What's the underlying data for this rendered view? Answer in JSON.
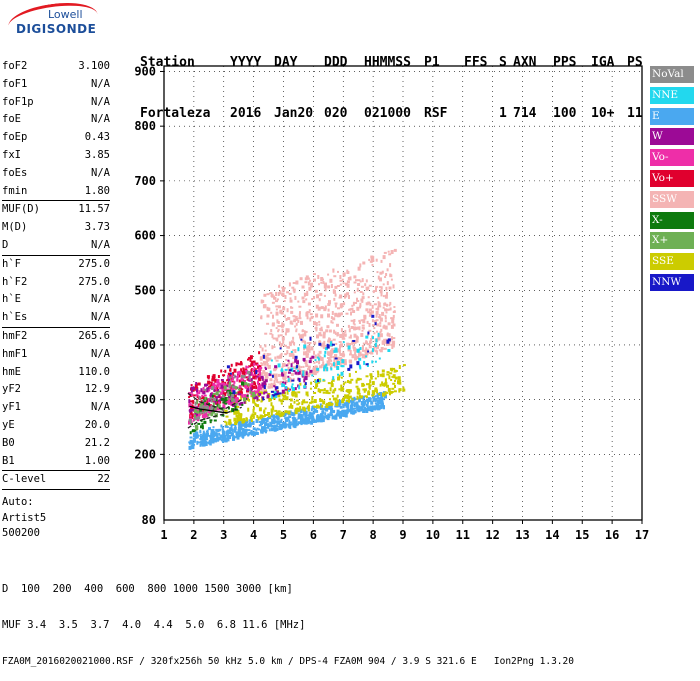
{
  "logo": {
    "line1": "Lowell",
    "line2": "DIGISONDE"
  },
  "header": {
    "labels": [
      "Station",
      "YYYY",
      "DAY",
      "DDD",
      "HHMMSS",
      "P1",
      "FFS",
      "S",
      "AXN",
      "PPS",
      "IGA",
      "PS"
    ],
    "values": [
      "Fortaleza",
      "2016",
      "Jan20",
      "020",
      "021000",
      "RSF",
      "",
      "1",
      "714",
      "100",
      "10+",
      "11"
    ]
  },
  "params_group1": [
    {
      "key": "foF2",
      "value": "3.100"
    },
    {
      "key": "foF1",
      "value": "N/A"
    },
    {
      "key": "foF1p",
      "value": "N/A"
    },
    {
      "key": "foE",
      "value": "N/A"
    },
    {
      "key": "foEp",
      "value": "0.43"
    },
    {
      "key": "fxI",
      "value": "3.85"
    },
    {
      "key": "foEs",
      "value": "N/A"
    },
    {
      "key": "fmin",
      "value": "1.80"
    }
  ],
  "params_group2": [
    {
      "key": "MUF(D)",
      "value": "11.57"
    },
    {
      "key": "M(D)",
      "value": "3.73"
    },
    {
      "key": "D",
      "value": "N/A"
    }
  ],
  "params_group3": [
    {
      "key": "h`F",
      "value": "275.0"
    },
    {
      "key": "h`F2",
      "value": "275.0"
    },
    {
      "key": "h`E",
      "value": "N/A"
    },
    {
      "key": "h`Es",
      "value": "N/A"
    }
  ],
  "params_group4": [
    {
      "key": "hmF2",
      "value": "265.6"
    },
    {
      "key": "hmF1",
      "value": "N/A"
    },
    {
      "key": "hmE",
      "value": "110.0"
    },
    {
      "key": "yF2",
      "value": "12.9"
    },
    {
      "key": "yF1",
      "value": "N/A"
    },
    {
      "key": "yE",
      "value": "20.0"
    },
    {
      "key": "B0",
      "value": "21.2"
    },
    {
      "key": "B1",
      "value": "1.00"
    }
  ],
  "params_group5": [
    {
      "key": "C-level",
      "value": "22"
    }
  ],
  "autoscale": {
    "line1": "Auto:",
    "line2": "Artist5",
    "line3": "500200"
  },
  "legend": [
    {
      "label": "NoVal",
      "color": "#8c8c8c"
    },
    {
      "label": "NNE",
      "color": "#22d8ee"
    },
    {
      "label": "E",
      "color": "#4aa8f0"
    },
    {
      "label": "W",
      "color": "#9c0a96"
    },
    {
      "label": "Vo-",
      "color": "#ee2ea8"
    },
    {
      "label": "Vo+",
      "color": "#e0002e"
    },
    {
      "label": "SSW",
      "color": "#f4b4b4"
    },
    {
      "label": "X-",
      "color": "#0e7a0e"
    },
    {
      "label": "X+",
      "color": "#6eb054"
    },
    {
      "label": "SSE",
      "color": "#cccc00"
    },
    {
      "label": "NNW",
      "color": "#1818c8"
    }
  ],
  "footer": {
    "row1_label": "D",
    "row1_values": "  100  200  400  600  800 1000 1500 3000 [km]",
    "row2_label": "MUF",
    "row2_values": " 3.4  3.5  3.7  4.0  4.4  5.0  6.8 11.6 [MHz]",
    "file_info": "FZA0M_2016020021000.RSF / 320fx256h 50 kHz 5.0 km / DPS-4 FZA0M 904 / 3.9 S 321.6 E   Ion2Png 1.3.20"
  },
  "chart_data": {
    "type": "scatter",
    "x_ticks": [
      1,
      2,
      3,
      4,
      5,
      6,
      7,
      8,
      9,
      10,
      11,
      12,
      13,
      14,
      15,
      16,
      17
    ],
    "y_ticks": [
      200,
      300,
      400,
      500,
      600,
      700,
      800,
      900
    ],
    "xlim": [
      1,
      17
    ],
    "ylim_bottom_label": "80",
    "ylim": [
      80,
      910
    ],
    "grid": "dotted",
    "clusters": [
      {
        "series": "E",
        "color": "#4aa8f0",
        "x_range": [
          1.8,
          8.4
        ],
        "y_base": [
          215,
          290
        ],
        "spread": 28,
        "count": 720
      },
      {
        "series": "SSE",
        "color": "#cccc00",
        "x_range": [
          3.0,
          9.0
        ],
        "y_base": [
          255,
          320
        ],
        "spread": 50,
        "count": 340
      },
      {
        "series": "SSW",
        "color": "#f4b4b4",
        "x_range": [
          4.2,
          8.7
        ],
        "y_base": [
          320,
          400
        ],
        "spread": 180,
        "count": 850
      },
      {
        "series": "Vo+",
        "color": "#e0002e",
        "x_range": [
          1.8,
          4.2
        ],
        "y_base": [
          270,
          330
        ],
        "spread": 60,
        "count": 220
      },
      {
        "series": "Vo-",
        "color": "#ee2ea8",
        "x_range": [
          1.8,
          4.2
        ],
        "y_base": [
          260,
          320
        ],
        "spread": 55,
        "count": 180
      },
      {
        "series": "W",
        "color": "#9c0a96",
        "x_range": [
          1.8,
          6.0
        ],
        "y_base": [
          270,
          330
        ],
        "spread": 60,
        "count": 120
      },
      {
        "series": "NNE",
        "color": "#22d8ee",
        "x_range": [
          4.5,
          8.5
        ],
        "y_base": [
          300,
          380
        ],
        "spread": 80,
        "count": 80
      },
      {
        "series": "X-",
        "color": "#0e7a0e",
        "x_range": [
          1.8,
          4.0
        ],
        "y_base": [
          240,
          300
        ],
        "spread": 50,
        "count": 50
      },
      {
        "series": "X+",
        "color": "#6eb054",
        "x_range": [
          2.0,
          4.0
        ],
        "y_base": [
          250,
          310
        ],
        "spread": 50,
        "count": 40
      },
      {
        "series": "NNW",
        "color": "#1818c8",
        "x_range": [
          3.0,
          8.5
        ],
        "y_base": [
          280,
          380
        ],
        "spread": 90,
        "count": 40
      },
      {
        "series": "NoVal",
        "color": "#8c8c8c",
        "x_range": [
          1.8,
          4.0
        ],
        "y_base": [
          260,
          320
        ],
        "spread": 50,
        "count": 40
      }
    ],
    "trace_lines": [
      {
        "points": [
          [
            1.8,
            312
          ],
          [
            2.2,
            296
          ],
          [
            3.0,
            282
          ],
          [
            3.6,
            300
          ]
        ],
        "style": "dashed",
        "color": "#202020"
      },
      {
        "points": [
          [
            1.8,
            248
          ],
          [
            2.2,
            262
          ],
          [
            3.0,
            274
          ],
          [
            3.6,
            286
          ]
        ],
        "style": "dashed",
        "color": "#202020"
      },
      {
        "points": [
          [
            1.85,
            288
          ],
          [
            2.2,
            283
          ],
          [
            2.8,
            278
          ],
          [
            3.1,
            276
          ]
        ],
        "style": "solid",
        "color": "#000000"
      }
    ]
  }
}
